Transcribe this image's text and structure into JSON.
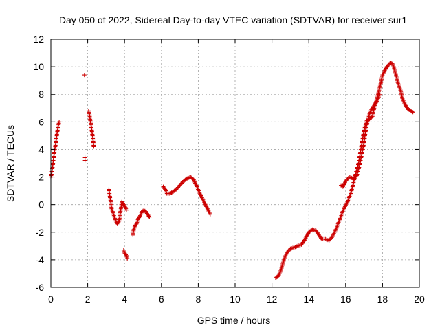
{
  "chart_data": {
    "type": "scatter",
    "title": "Day 050 of 2022, Sidereal Day-to-day VTEC variation (SDTVAR) for receiver sur1",
    "xlabel": "GPS time / hours",
    "ylabel": "SDTVAR / TECUs",
    "xlim": [
      0,
      20
    ],
    "ylim": [
      -6,
      12
    ],
    "x_ticks": [
      "0",
      "2",
      "4",
      "6",
      "8",
      "10",
      "12",
      "14",
      "16",
      "18",
      "20"
    ],
    "y_ticks": [
      "-6",
      "-4",
      "-2",
      "0",
      "2",
      "4",
      "6",
      "8",
      "10",
      "12"
    ],
    "grid": true,
    "marker": "+",
    "color": "#cc0000",
    "series": [
      {
        "name": "SDTVAR",
        "segments": [
          [
            [
              0.0,
              2.0
            ],
            [
              0.05,
              2.3
            ],
            [
              0.1,
              2.8
            ],
            [
              0.15,
              3.4
            ],
            [
              0.2,
              3.9
            ],
            [
              0.25,
              4.3
            ],
            [
              0.3,
              4.8
            ],
            [
              0.35,
              5.3
            ],
            [
              0.4,
              5.7
            ],
            [
              0.45,
              6.0
            ]
          ],
          [
            [
              1.82,
              9.4
            ]
          ],
          [
            [
              1.85,
              3.2
            ],
            [
              1.85,
              3.4
            ]
          ],
          [
            [
              2.05,
              6.8
            ],
            [
              2.1,
              6.5
            ],
            [
              2.15,
              6.0
            ],
            [
              2.2,
              5.6
            ],
            [
              2.25,
              5.1
            ],
            [
              2.3,
              4.6
            ],
            [
              2.33,
              4.2
            ]
          ],
          [
            [
              3.15,
              1.1
            ],
            [
              3.2,
              0.6
            ],
            [
              3.25,
              0.2
            ],
            [
              3.3,
              -0.3
            ],
            [
              3.4,
              -0.7
            ],
            [
              3.5,
              -1.1
            ],
            [
              3.6,
              -1.4
            ],
            [
              3.7,
              -1.2
            ],
            [
              3.75,
              -0.8
            ],
            [
              3.8,
              -0.3
            ],
            [
              3.85,
              0.2
            ],
            [
              3.95,
              0.0
            ],
            [
              4.05,
              -0.2
            ],
            [
              4.1,
              -0.4
            ]
          ],
          [
            [
              3.95,
              -3.3
            ],
            [
              4.0,
              -3.5
            ],
            [
              4.1,
              -3.7
            ],
            [
              4.15,
              -3.9
            ]
          ],
          [
            [
              4.45,
              -2.2
            ],
            [
              4.5,
              -1.8
            ],
            [
              4.55,
              -1.6
            ],
            [
              4.65,
              -1.4
            ],
            [
              4.75,
              -1.0
            ],
            [
              4.85,
              -0.8
            ],
            [
              4.95,
              -0.5
            ],
            [
              5.05,
              -0.4
            ],
            [
              5.15,
              -0.5
            ],
            [
              5.25,
              -0.7
            ],
            [
              5.35,
              -0.9
            ]
          ],
          [
            [
              6.1,
              1.3
            ],
            [
              6.2,
              1.1
            ],
            [
              6.3,
              0.8
            ],
            [
              6.45,
              0.8
            ],
            [
              6.6,
              0.9
            ],
            [
              6.8,
              1.1
            ],
            [
              7.0,
              1.4
            ],
            [
              7.2,
              1.7
            ],
            [
              7.4,
              1.9
            ],
            [
              7.6,
              2.0
            ],
            [
              7.75,
              1.8
            ],
            [
              7.9,
              1.4
            ],
            [
              8.05,
              0.9
            ],
            [
              8.2,
              0.5
            ],
            [
              8.35,
              0.1
            ],
            [
              8.5,
              -0.3
            ],
            [
              8.65,
              -0.7
            ]
          ],
          [
            [
              12.2,
              -5.3
            ],
            [
              12.35,
              -5.2
            ],
            [
              12.5,
              -4.7
            ],
            [
              12.65,
              -4.0
            ],
            [
              12.8,
              -3.5
            ],
            [
              13.0,
              -3.2
            ],
            [
              13.2,
              -3.1
            ],
            [
              13.4,
              -3.0
            ],
            [
              13.6,
              -2.9
            ],
            [
              13.8,
              -2.5
            ],
            [
              14.0,
              -2.0
            ],
            [
              14.2,
              -1.8
            ],
            [
              14.4,
              -1.9
            ],
            [
              14.55,
              -2.2
            ],
            [
              14.7,
              -2.5
            ],
            [
              14.9,
              -2.5
            ],
            [
              15.1,
              -2.6
            ],
            [
              15.3,
              -2.3
            ],
            [
              15.5,
              -1.7
            ],
            [
              15.7,
              -1.0
            ],
            [
              15.9,
              -0.3
            ],
            [
              16.1,
              0.2
            ],
            [
              16.3,
              0.9
            ],
            [
              16.5,
              2.0
            ],
            [
              16.7,
              3.0
            ],
            [
              16.85,
              4.2
            ],
            [
              17.0,
              5.4
            ],
            [
              17.15,
              6.1
            ],
            [
              17.3,
              6.2
            ],
            [
              17.45,
              6.4
            ],
            [
              17.55,
              7.0
            ],
            [
              17.7,
              7.7
            ],
            [
              17.85,
              8.5
            ],
            [
              18.0,
              9.4
            ],
            [
              18.15,
              9.8
            ],
            [
              18.3,
              10.1
            ],
            [
              18.45,
              10.3
            ],
            [
              18.55,
              10.2
            ],
            [
              18.65,
              9.8
            ],
            [
              18.75,
              9.3
            ],
            [
              18.85,
              8.8
            ],
            [
              19.0,
              8.2
            ],
            [
              19.1,
              7.6
            ],
            [
              19.25,
              7.2
            ],
            [
              19.4,
              6.9
            ],
            [
              19.55,
              6.8
            ],
            [
              19.65,
              6.7
            ]
          ],
          [
            [
              15.75,
              1.4
            ],
            [
              15.85,
              1.3
            ],
            [
              16.0,
              1.7
            ],
            [
              16.2,
              2.0
            ],
            [
              16.4,
              1.9
            ],
            [
              16.6,
              2.1
            ],
            [
              16.75,
              2.8
            ],
            [
              16.9,
              3.8
            ],
            [
              17.0,
              4.5
            ],
            [
              17.1,
              5.5
            ],
            [
              17.2,
              6.1
            ],
            [
              17.3,
              6.6
            ],
            [
              17.4,
              6.9
            ],
            [
              17.55,
              7.2
            ],
            [
              17.7,
              7.5
            ],
            [
              17.85,
              8.0
            ]
          ]
        ]
      }
    ]
  }
}
